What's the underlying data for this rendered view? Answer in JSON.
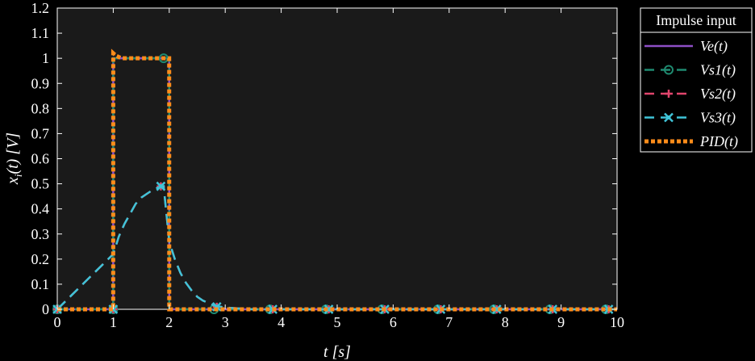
{
  "chart_data": {
    "type": "line",
    "title": "",
    "xlabel": "t [s]",
    "ylabel": "x_i(t) [V]",
    "xlim": [
      0,
      10
    ],
    "ylim": [
      0,
      1.2
    ],
    "xticks": [
      "0",
      "1",
      "2",
      "3",
      "4",
      "5",
      "6",
      "7",
      "8",
      "9",
      "10"
    ],
    "yticks": [
      "0",
      "0.1",
      "0.2",
      "0.3",
      "0.4",
      "0.5",
      "0.6",
      "0.7",
      "0.8",
      "0.9",
      "1",
      "1.1",
      "1.2"
    ],
    "grid": false,
    "legend": {
      "title": "Impulse input",
      "placement": "outside-top-right",
      "entries": [
        "Ve(t)",
        "Vs1(t)",
        "Vs2(t)",
        "Vs3(t)",
        "PID(t)"
      ]
    },
    "series": [
      {
        "name": "Ve(t)",
        "color": "#8e4fc6",
        "style": "solid",
        "marker": "none",
        "x": [
          0,
          0.999,
          1.0,
          1.999,
          2.0,
          10
        ],
        "y": [
          0,
          0,
          1,
          1,
          0,
          0
        ]
      },
      {
        "name": "Vs1(t)",
        "color": "#1f8a70",
        "style": "dashed",
        "marker": "circle",
        "x": [
          0,
          0.999,
          1.0,
          1.999,
          2.0,
          10
        ],
        "y": [
          0,
          0,
          1,
          1,
          0,
          0
        ],
        "markers_x": [
          0,
          1,
          1.9,
          2.8,
          3.8,
          4.8,
          5.8,
          6.8,
          7.8,
          8.8,
          9.8
        ],
        "markers_y": [
          0,
          0,
          1,
          0,
          0,
          0,
          0,
          0,
          0,
          0,
          0
        ]
      },
      {
        "name": "Vs2(t)",
        "color": "#e0456c",
        "style": "dashed",
        "marker": "plus",
        "x": [
          0,
          1,
          1.1,
          1.2,
          1.3,
          1.4,
          1.5,
          1.6,
          1.7,
          1.8,
          1.9,
          2.0,
          2.1,
          2.2,
          2.3,
          2.4,
          2.5,
          2.6,
          2.8,
          3.0,
          3.5,
          10
        ],
        "y": [
          0,
          0.22,
          0.29,
          0.34,
          0.38,
          0.42,
          0.445,
          0.46,
          0.475,
          0.485,
          0.49,
          0.27,
          0.2,
          0.145,
          0.105,
          0.075,
          0.05,
          0.035,
          0.015,
          0.007,
          0,
          0
        ],
        "markers_x": [
          0,
          1,
          1.85,
          2.85,
          3.85,
          4.85,
          5.85,
          6.85,
          7.85,
          8.85,
          9.85
        ],
        "markers_y": [
          0,
          0,
          0.49,
          0.01,
          0,
          0,
          0,
          0,
          0,
          0,
          0
        ]
      },
      {
        "name": "Vs3(t)",
        "color": "#3fc4d8",
        "style": "dashed",
        "marker": "x",
        "x": [
          0,
          1,
          1.1,
          1.2,
          1.3,
          1.4,
          1.5,
          1.6,
          1.7,
          1.8,
          1.9,
          2.0,
          2.1,
          2.2,
          2.3,
          2.4,
          2.5,
          2.6,
          2.8,
          3.0,
          3.5,
          10
        ],
        "y": [
          0,
          0.22,
          0.29,
          0.34,
          0.38,
          0.42,
          0.445,
          0.46,
          0.475,
          0.485,
          0.49,
          0.27,
          0.2,
          0.145,
          0.105,
          0.075,
          0.05,
          0.035,
          0.015,
          0.007,
          0,
          0
        ],
        "markers_x": [
          0,
          1,
          1.85,
          2.85,
          3.85,
          4.85,
          5.85,
          6.85,
          7.85,
          8.85,
          9.85
        ],
        "markers_y": [
          0,
          0,
          0.49,
          0.01,
          0,
          0,
          0,
          0,
          0,
          0,
          0
        ]
      },
      {
        "name": "PID(t)",
        "color": "#ff8c1a",
        "style": "dotted",
        "marker": "none",
        "x": [
          0,
          0.999,
          1.0,
          1.05,
          1.15,
          1.3,
          1.999,
          2.0,
          10
        ],
        "y": [
          0,
          0,
          1.02,
          1.01,
          1.0,
          1.0,
          1.0,
          0,
          0
        ]
      }
    ]
  }
}
